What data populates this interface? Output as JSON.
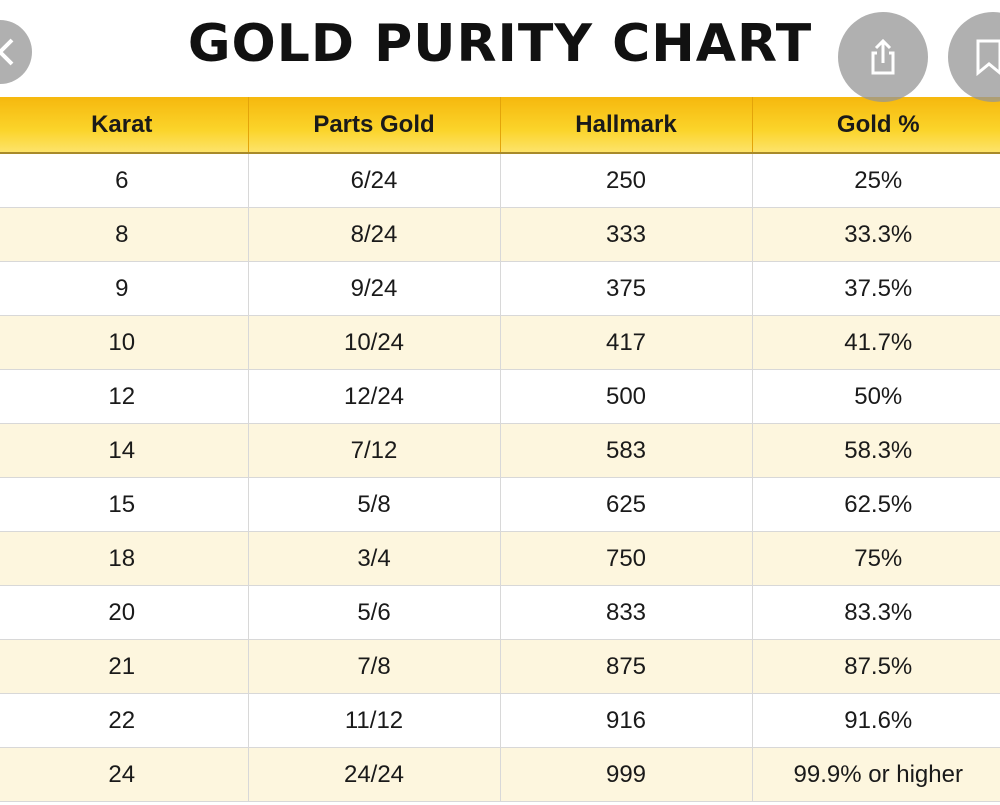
{
  "title": "GOLD PURITY CHART",
  "columns": [
    "Karat",
    "Parts Gold",
    "Hallmark",
    "Gold %"
  ],
  "rows": [
    [
      "6",
      "6/24",
      "250",
      "25%"
    ],
    [
      "8",
      "8/24",
      "333",
      "33.3%"
    ],
    [
      "9",
      "9/24",
      "375",
      "37.5%"
    ],
    [
      "10",
      "10/24",
      "417",
      "41.7%"
    ],
    [
      "12",
      "12/24",
      "500",
      "50%"
    ],
    [
      "14",
      "7/12",
      "583",
      "58.3%"
    ],
    [
      "15",
      "5/8",
      "625",
      "62.5%"
    ],
    [
      "18",
      "3/4",
      "750",
      "75%"
    ],
    [
      "20",
      "5/6",
      "833",
      "83.3%"
    ],
    [
      "21",
      "7/8",
      "875",
      "87.5%"
    ],
    [
      "22",
      "11/12",
      "916",
      "91.6%"
    ],
    [
      "24",
      "24/24",
      "999",
      "99.9% or higher"
    ]
  ],
  "colors": {
    "header_gold": "#f8c71c",
    "row_alt": "#fdf6de",
    "overlay_button": "#969696"
  },
  "overlay_buttons": [
    "back-icon",
    "share-icon",
    "bookmark-icon"
  ]
}
